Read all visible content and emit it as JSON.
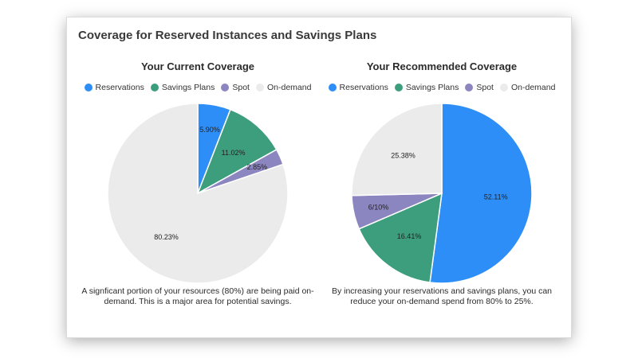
{
  "card": {
    "title": "Coverage for Reserved Instances and Savings Plans"
  },
  "legend_items": [
    {
      "label": "Reservations",
      "color": "#2e8ef7"
    },
    {
      "label": "Savings Plans",
      "color": "#3d9e7e"
    },
    {
      "label": "Spot",
      "color": "#8c86c0"
    },
    {
      "label": "On-demand",
      "color": "#ebebeb"
    }
  ],
  "captions": {
    "current": "A signficant portion of your resources (80%) are being paid on-demand. This is a major area for potential savings.",
    "recommended": "By increasing your reservations and savings plans, you can reduce your on-demand spend from 80% to 25%."
  },
  "chart_data": [
    {
      "type": "pie",
      "title": "Your Current Coverage",
      "categories": [
        "Reservations",
        "Savings Plans",
        "Spot",
        "On-demand"
      ],
      "values": [
        5.9,
        11.02,
        2.85,
        80.23
      ],
      "data_labels": [
        "5.90%",
        "11.02%",
        "2.85%",
        "80.23%"
      ],
      "colors": [
        "#2e8ef7",
        "#3d9e7e",
        "#8c86c0",
        "#ebebeb"
      ],
      "legend": "top"
    },
    {
      "type": "pie",
      "title": "Your Recommended Coverage",
      "categories": [
        "Reservations",
        "Savings Plans",
        "Spot",
        "On-demand"
      ],
      "values": [
        52.11,
        16.41,
        6.1,
        25.38
      ],
      "data_labels": [
        "52.11%",
        "16.41%",
        "6/10%",
        "25.38%"
      ],
      "colors": [
        "#2e8ef7",
        "#3d9e7e",
        "#8c86c0",
        "#ebebeb"
      ],
      "legend": "top"
    }
  ]
}
